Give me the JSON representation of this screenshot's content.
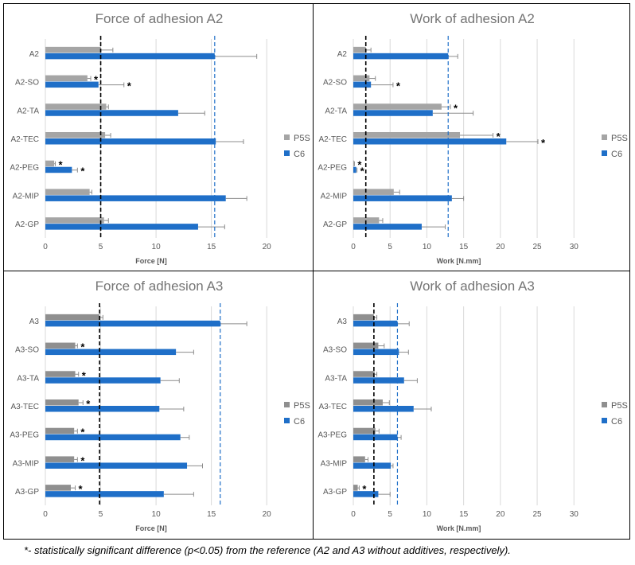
{
  "colors": {
    "p5s": "#a5a5a5",
    "p5s_dark": "#8f8f8f",
    "c6": "#1f6fc8",
    "grid": "#d9d9d9",
    "text": "#595959",
    "title": "#757575"
  },
  "chart_data": [
    {
      "type": "bar",
      "orientation": "horizontal",
      "title": "Force of adhesion A2",
      "xlabel": "Force [N]",
      "xlim": [
        0,
        22
      ],
      "xticks": [
        "0",
        "5",
        "10",
        "15",
        "20"
      ],
      "categories": [
        "A2",
        "A2-SO",
        "A2-TA",
        "A2-TEC",
        "A2-PEG",
        "A2-MIP",
        "A2-GP"
      ],
      "series": [
        {
          "name": "P5S",
          "values": [
            5.0,
            3.8,
            5.5,
            5.4,
            0.8,
            4.0,
            5.3
          ],
          "errors": [
            1.1,
            0.3,
            0.2,
            0.5,
            0.1,
            0.2,
            0.4
          ],
          "significant": [
            false,
            true,
            false,
            false,
            true,
            false,
            false
          ]
        },
        {
          "name": "C6",
          "values": [
            15.3,
            4.8,
            12.0,
            15.4,
            2.4,
            16.3,
            13.8
          ],
          "errors": [
            3.8,
            2.3,
            2.4,
            2.5,
            0.5,
            1.9,
            2.4
          ],
          "significant": [
            false,
            true,
            false,
            false,
            true,
            false,
            false
          ]
        }
      ],
      "ref_lines": [
        {
          "series": "P5S",
          "value": 5.0
        },
        {
          "series": "C6",
          "value": 15.3
        }
      ],
      "legend": [
        "P5S",
        "C6"
      ],
      "significance_mark": "*"
    },
    {
      "type": "bar",
      "orientation": "horizontal",
      "title": "Work of adhesion A2",
      "xlabel": "Work [N.mm]",
      "xlim": [
        0,
        33
      ],
      "xticks": [
        "0",
        "5",
        "10",
        "15",
        "20",
        "25",
        "30"
      ],
      "categories": [
        "A2",
        "A2-SO",
        "A2-TA",
        "A2-TEC",
        "A2-PEG",
        "A2-MIP",
        "A2-GP"
      ],
      "series": [
        {
          "name": "P5S",
          "values": [
            1.7,
            2.2,
            12.0,
            14.5,
            0.1,
            5.5,
            3.5
          ],
          "errors": [
            0.7,
            0.8,
            1.2,
            4.5,
            0.05,
            0.8,
            0.5
          ],
          "significant": [
            false,
            false,
            true,
            true,
            true,
            false,
            false
          ]
        },
        {
          "name": "C6",
          "values": [
            12.9,
            2.4,
            10.8,
            20.8,
            0.4,
            13.4,
            9.3
          ],
          "errors": [
            1.3,
            3.0,
            5.5,
            4.3,
            0.1,
            1.6,
            3.2
          ],
          "significant": [
            false,
            true,
            false,
            true,
            true,
            false,
            false
          ]
        }
      ],
      "ref_lines": [
        {
          "series": "P5S",
          "value": 1.7
        },
        {
          "series": "C6",
          "value": 12.9
        }
      ],
      "legend": [
        "P5S",
        "C6"
      ],
      "significance_mark": "*"
    },
    {
      "type": "bar",
      "orientation": "horizontal",
      "title": "Force of adhesion A3",
      "xlabel": "Force [N]",
      "xlim": [
        0,
        22
      ],
      "xticks": [
        "0",
        "5",
        "10",
        "15",
        "20"
      ],
      "categories": [
        "A3",
        "A3-SO",
        "A3-TA",
        "A3-TEC",
        "A3-PEG",
        "A3-MIP",
        "A3-GP"
      ],
      "series": [
        {
          "name": "P5S",
          "values": [
            4.9,
            2.7,
            2.7,
            3.0,
            2.6,
            2.6,
            2.3
          ],
          "errors": [
            0.3,
            0.2,
            0.3,
            0.4,
            0.3,
            0.3,
            0.4
          ],
          "significant": [
            false,
            true,
            true,
            true,
            true,
            true,
            true
          ]
        },
        {
          "name": "C6",
          "values": [
            15.8,
            11.8,
            10.4,
            10.3,
            12.2,
            12.8,
            10.7
          ],
          "errors": [
            2.4,
            1.6,
            1.7,
            2.2,
            0.8,
            1.4,
            2.7
          ],
          "significant": [
            false,
            false,
            false,
            false,
            false,
            false,
            false
          ]
        }
      ],
      "ref_lines": [
        {
          "series": "P5S",
          "value": 4.9
        },
        {
          "series": "C6",
          "value": 15.8
        }
      ],
      "legend": [
        "P5S",
        "C6"
      ],
      "significance_mark": "*"
    },
    {
      "type": "bar",
      "orientation": "horizontal",
      "title": "Work of adhesion A3",
      "xlabel": "Work [N.mm]",
      "xlim": [
        0,
        33
      ],
      "xticks": [
        "0",
        "5",
        "10",
        "15",
        "20",
        "25",
        "30"
      ],
      "categories": [
        "A3",
        "A3-SO",
        "A3-TA",
        "A3-TEC",
        "A3-PEG",
        "A3-MIP",
        "A3-GP"
      ],
      "series": [
        {
          "name": "P5S",
          "values": [
            2.8,
            3.4,
            2.9,
            4.0,
            3.0,
            1.6,
            0.6
          ],
          "errors": [
            0.4,
            0.8,
            0.3,
            0.9,
            0.5,
            0.4,
            0.2
          ],
          "significant": [
            false,
            false,
            false,
            false,
            false,
            false,
            true
          ]
        },
        {
          "name": "C6",
          "values": [
            6.0,
            6.2,
            6.9,
            8.2,
            6.0,
            5.1,
            3.4
          ],
          "errors": [
            1.6,
            1.3,
            1.8,
            2.4,
            0.5,
            0.3,
            1.6
          ],
          "significant": [
            false,
            false,
            false,
            false,
            false,
            false,
            false
          ]
        }
      ],
      "ref_lines": [
        {
          "series": "P5S",
          "value": 2.8
        },
        {
          "series": "C6",
          "value": 6.0
        }
      ],
      "legend": [
        "P5S",
        "C6"
      ],
      "significance_mark": "*"
    }
  ],
  "footnote": "*- statistically significant difference (p<0.05) from the reference (A2 and A3 without additives, respectively)."
}
